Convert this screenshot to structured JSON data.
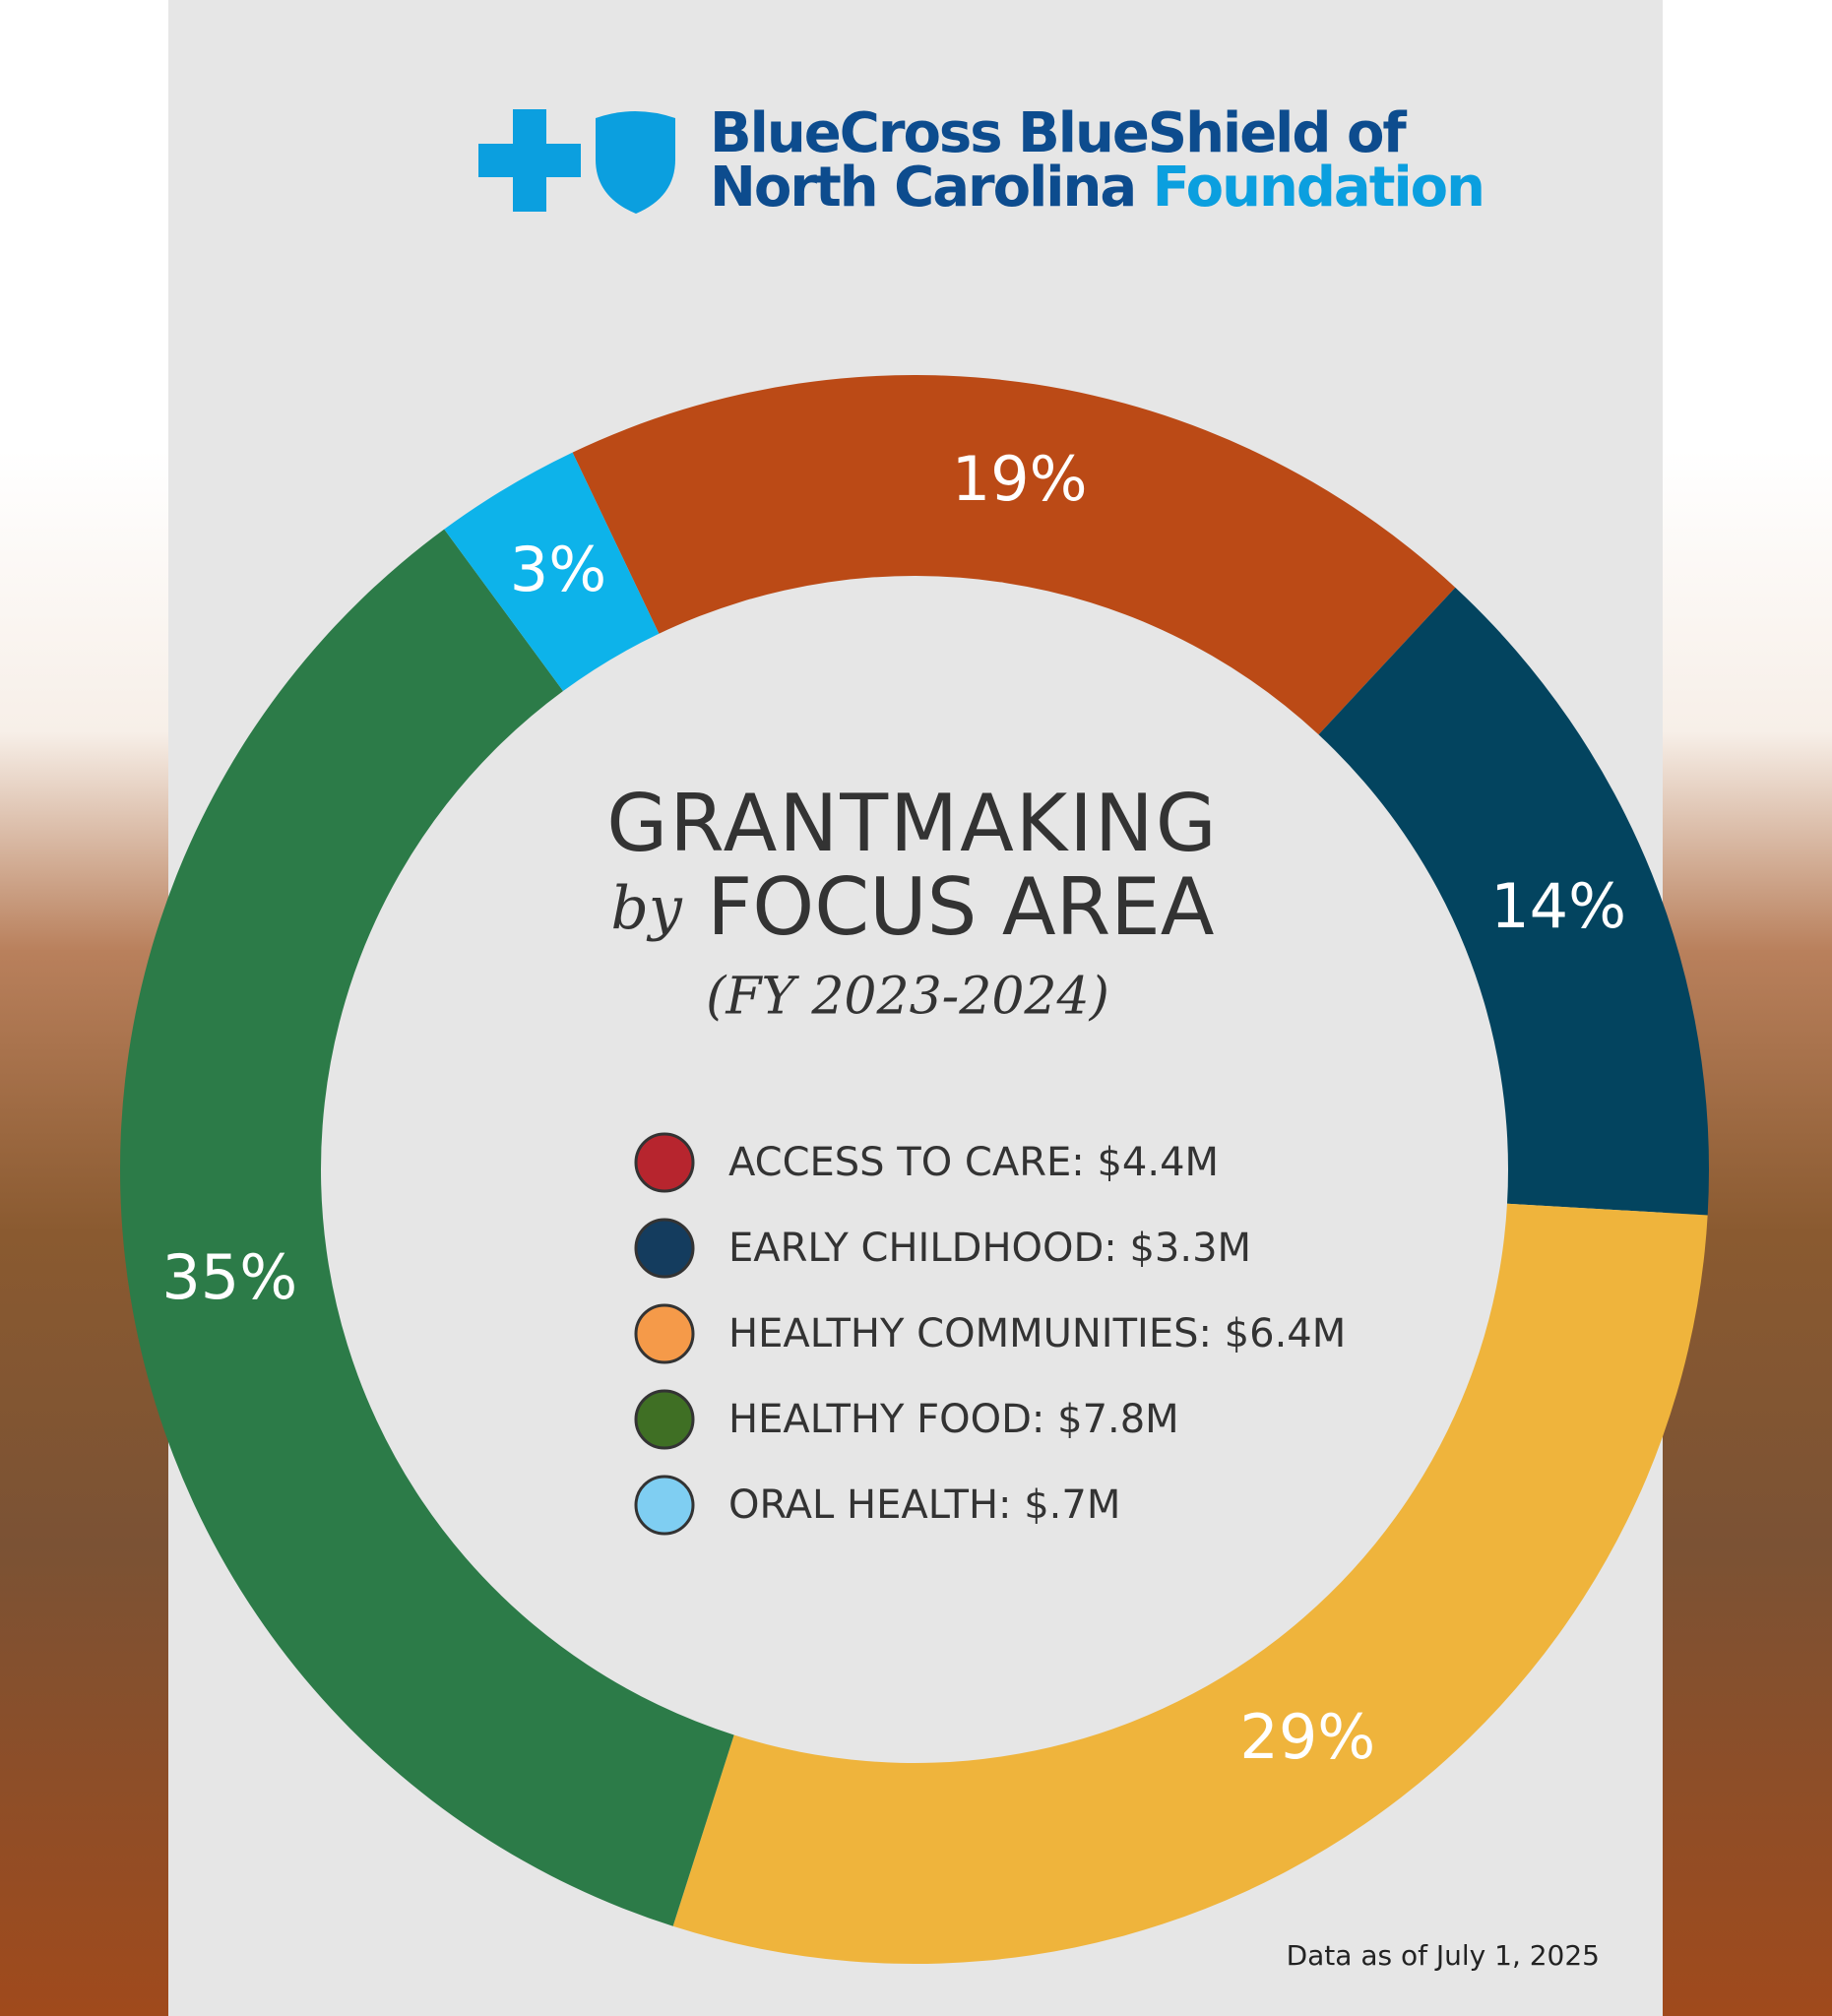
{
  "logo": {
    "line1": "BlueCross BlueShield of",
    "line2": "North Carolina",
    "line3": "Foundation"
  },
  "chart_data": {
    "type": "donut",
    "title": "GRANTMAKING",
    "title_by": "by",
    "title_rest": "FOCUS AREA",
    "subtitle": "(FY 2023-2024)",
    "categories": [
      "ACCESS TO CARE: $4.4M",
      "EARLY CHILDHOOD: $3.3M",
      "HEALTHY COMMUNITIES: $6.4M",
      "HEALTHY FOOD: $7.8M",
      "ORAL HEALTH: $.7M"
    ],
    "values": [
      19,
      14,
      29,
      35,
      3
    ],
    "value_labels": [
      "19%",
      "14%",
      "29%",
      "35%",
      "3%"
    ],
    "colors": [
      "#bb4a16",
      "#03445f",
      "#efb43c",
      "#2c7b48",
      "#0db3ea"
    ],
    "legend_colors": [
      "#b7252e",
      "#143c5e",
      "#f59a49",
      "#3f6f24",
      "#7fcef2"
    ],
    "note": "Data as of July 1, 2025"
  }
}
